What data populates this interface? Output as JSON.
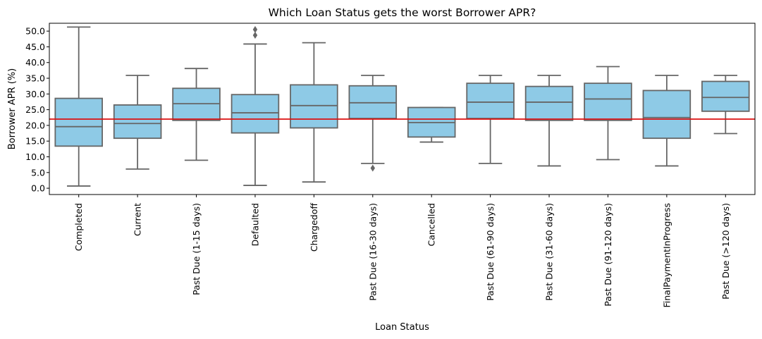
{
  "chart_data": {
    "type": "box",
    "title": "Which Loan Status gets the worst Borrower APR?",
    "xlabel": "Loan Status",
    "ylabel": "Borrower APR (%)",
    "ylim": [
      -2.0,
      52.5
    ],
    "yticks": [
      "0.0",
      "5.0",
      "10.0",
      "15.0",
      "20.0",
      "25.0",
      "30.0",
      "35.0",
      "40.0",
      "45.0",
      "50.0"
    ],
    "categories": [
      "Completed",
      "Current",
      "Past Due (1-15 days)",
      "Defaulted",
      "Chargedoff",
      "Past Due (16-30 days)",
      "Cancelled",
      "Past Due (61-90 days)",
      "Past Due (31-60 days)",
      "Past Due (91-120 days)",
      "FinalPaymentInProgress",
      "Past Due (>120 days)"
    ],
    "boxes": [
      {
        "whisker_low": 0.7,
        "q1": 13.4,
        "median": 19.6,
        "q3": 28.6,
        "whisker_high": 51.3,
        "outliers": []
      },
      {
        "whisker_low": 6.1,
        "q1": 15.9,
        "median": 20.6,
        "q3": 26.5,
        "whisker_high": 35.9,
        "outliers": []
      },
      {
        "whisker_low": 8.9,
        "q1": 21.6,
        "median": 26.9,
        "q3": 31.8,
        "whisker_high": 38.1,
        "outliers": []
      },
      {
        "whisker_low": 0.9,
        "q1": 17.6,
        "median": 24.0,
        "q3": 29.8,
        "whisker_high": 45.9,
        "outliers": [
          48.7,
          50.5
        ]
      },
      {
        "whisker_low": 2.0,
        "q1": 19.2,
        "median": 26.3,
        "q3": 32.9,
        "whisker_high": 46.3,
        "outliers": []
      },
      {
        "whisker_low": 7.9,
        "q1": 22.2,
        "median": 27.2,
        "q3": 32.6,
        "whisker_high": 35.9,
        "outliers": [
          6.4
        ]
      },
      {
        "whisker_low": 14.7,
        "q1": 16.3,
        "median": 20.9,
        "q3": 25.7,
        "whisker_high": 25.7,
        "outliers": []
      },
      {
        "whisker_low": 7.9,
        "q1": 22.2,
        "median": 27.4,
        "q3": 33.4,
        "whisker_high": 35.9,
        "outliers": []
      },
      {
        "whisker_low": 7.1,
        "q1": 21.6,
        "median": 27.4,
        "q3": 32.4,
        "whisker_high": 35.9,
        "outliers": []
      },
      {
        "whisker_low": 9.1,
        "q1": 21.6,
        "median": 28.4,
        "q3": 33.4,
        "whisker_high": 38.7,
        "outliers": []
      },
      {
        "whisker_low": 7.1,
        "q1": 15.9,
        "median": 22.5,
        "q3": 31.1,
        "whisker_high": 35.9,
        "outliers": []
      },
      {
        "whisker_low": 17.4,
        "q1": 24.5,
        "median": 28.9,
        "q3": 34.0,
        "whisker_high": 35.9,
        "outliers": []
      }
    ],
    "reference_line": 22.0,
    "grid": false,
    "colors": {
      "box_fill": "#8ecae6",
      "box_edge": "#666666",
      "reference_line": "#dd1111",
      "axis": "#000000"
    }
  }
}
